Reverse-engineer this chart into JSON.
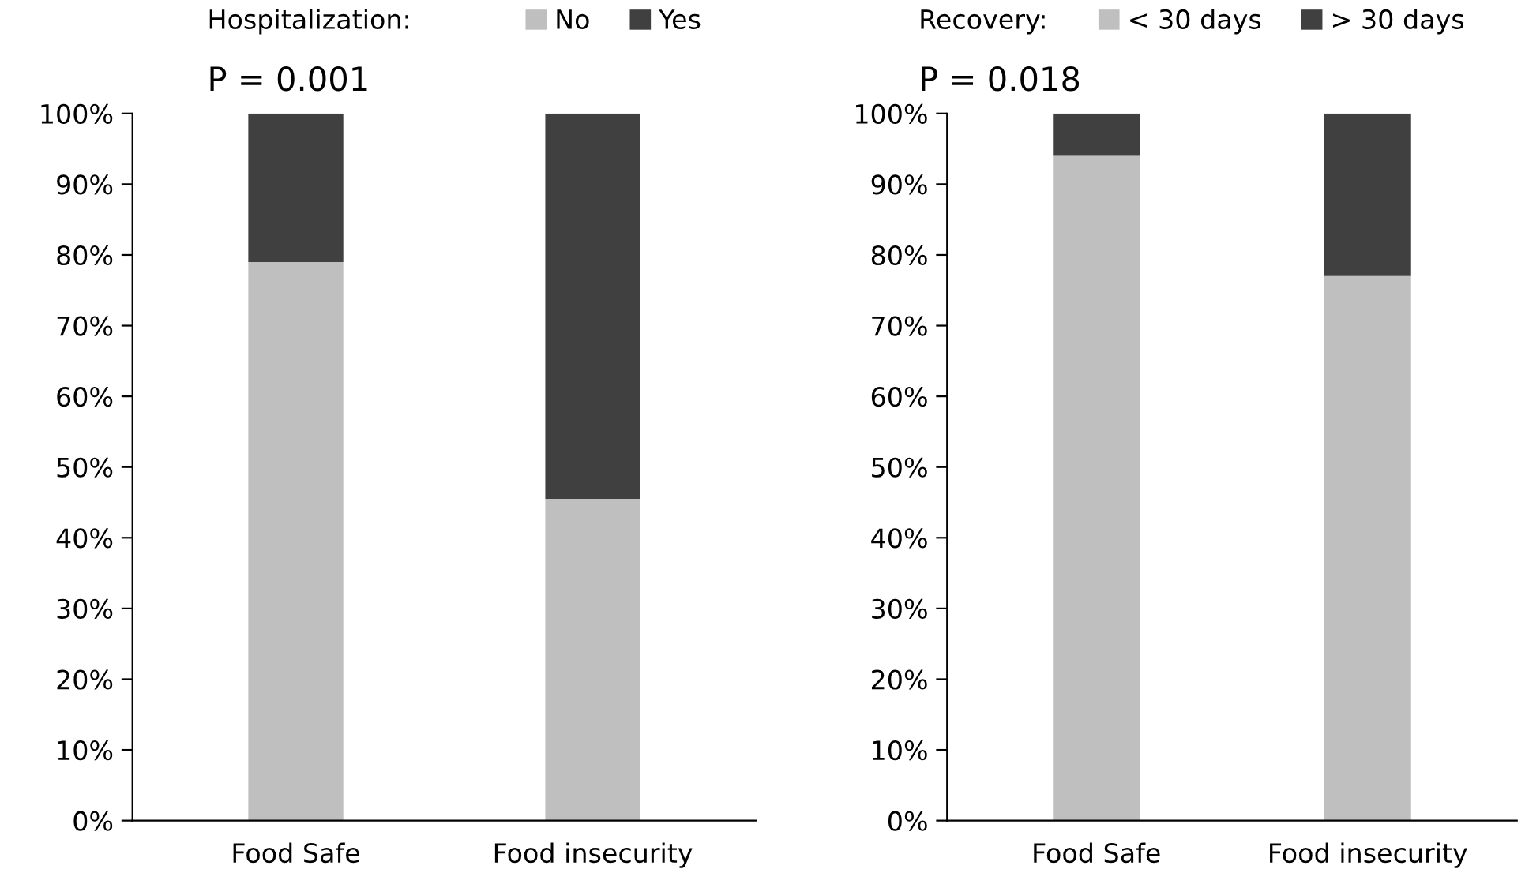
{
  "chart_data": [
    {
      "type": "bar",
      "stacked": true,
      "legend": "top",
      "legend_title": "Hospitalization:",
      "annotations": [
        "P = 0.001"
      ],
      "categories": [
        "Food Safe",
        "Food insecurity"
      ],
      "series": [
        {
          "name": "No",
          "color": "#bfbfbf",
          "values": [
            79,
            45.5
          ]
        },
        {
          "name": "Yes",
          "color": "#404040",
          "values": [
            21,
            54.5
          ]
        }
      ],
      "ylim": [
        0,
        100
      ],
      "yticks": [
        {
          "value": 0,
          "label": "0%"
        },
        {
          "value": 10,
          "label": "10%"
        },
        {
          "value": 20,
          "label": "20%"
        },
        {
          "value": 30,
          "label": "30%"
        },
        {
          "value": 40,
          "label": "40%"
        },
        {
          "value": 50,
          "label": "50%"
        },
        {
          "value": 60,
          "label": "60%"
        },
        {
          "value": 70,
          "label": "70%"
        },
        {
          "value": 80,
          "label": "80%"
        },
        {
          "value": 90,
          "label": "90%"
        },
        {
          "value": 100,
          "label": "100%"
        }
      ],
      "grid": false
    },
    {
      "type": "bar",
      "stacked": true,
      "legend": "top",
      "legend_title": "Recovery:",
      "annotations": [
        "P = 0.018"
      ],
      "categories": [
        "Food Safe",
        "Food insecurity"
      ],
      "series": [
        {
          "name": "< 30 days",
          "color": "#bfbfbf",
          "values": [
            94,
            77
          ]
        },
        {
          "name": "> 30 days",
          "color": "#404040",
          "values": [
            6,
            23
          ]
        }
      ],
      "ylim": [
        0,
        100
      ],
      "yticks": [
        {
          "value": 0,
          "label": "0%"
        },
        {
          "value": 10,
          "label": "10%"
        },
        {
          "value": 20,
          "label": "20%"
        },
        {
          "value": 30,
          "label": "30%"
        },
        {
          "value": 40,
          "label": "40%"
        },
        {
          "value": 50,
          "label": "50%"
        },
        {
          "value": 60,
          "label": "60%"
        },
        {
          "value": 70,
          "label": "70%"
        },
        {
          "value": 80,
          "label": "80%"
        },
        {
          "value": 90,
          "label": "90%"
        },
        {
          "value": 100,
          "label": "100%"
        }
      ],
      "grid": false
    }
  ]
}
